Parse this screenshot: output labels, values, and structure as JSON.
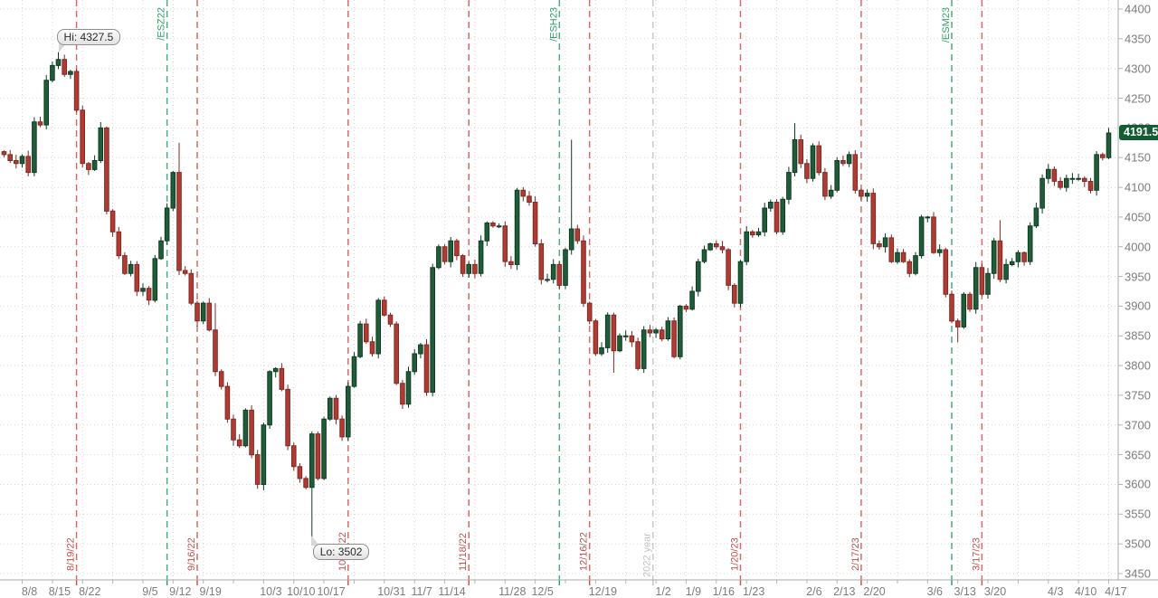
{
  "chart_data": {
    "type": "candlestick",
    "title": "",
    "instrument_rollover_labels": [
      "/ESZ22",
      "/ESH23",
      "/ESM23"
    ],
    "hi_annotation": {
      "label": "Hi: 4327.5",
      "date": "8/16",
      "price": 4327.5
    },
    "lo_annotation": {
      "label": "Lo: 3502",
      "date": "10/13",
      "price": 3502
    },
    "last_price": {
      "label": "4191.5",
      "value": 4191.5
    },
    "y_axis": {
      "min": 3450,
      "max": 4400,
      "step": 50,
      "labels": [
        4400,
        4350,
        4300,
        4250,
        4200,
        4150,
        4100,
        4050,
        4000,
        3950,
        3900,
        3850,
        3800,
        3750,
        3700,
        3650,
        3600,
        3550,
        3500,
        3450
      ]
    },
    "x_labels": [
      "8/8",
      "8/15",
      "8/22",
      "9/5",
      "9/12",
      "9/19",
      "10/3",
      "10/10",
      "10/17",
      "10/31",
      "11/7",
      "11/14",
      "11/28",
      "12/5",
      "12/19",
      "1/2",
      "1/9",
      "1/16",
      "1/23",
      "2/6",
      "2/13",
      "2/20",
      "3/6",
      "3/13",
      "3/20",
      "4/3",
      "4/10",
      "4/17"
    ],
    "events": [
      {
        "date": "8/19",
        "label": "8/19/22",
        "kind": "roll-expiry",
        "color": "red",
        "pos": "bottom",
        "offset": 0
      },
      {
        "date": "9/9",
        "label": "/ESZ22",
        "kind": "contract",
        "color": "green",
        "pos": "top",
        "offset": 0
      },
      {
        "date": "9/16",
        "label": "9/16/22",
        "kind": "roll-expiry",
        "color": "red",
        "pos": "bottom",
        "offset": 0
      },
      {
        "date": "10/21",
        "label": "10/21/22",
        "kind": "roll-expiry",
        "color": "red",
        "pos": "bottom",
        "offset": 0
      },
      {
        "date": "11/18",
        "label": "11/18/22",
        "kind": "roll-expiry",
        "color": "red",
        "pos": "bottom",
        "offset": 0
      },
      {
        "date": "12/9",
        "label": "/ESH23",
        "kind": "contract",
        "color": "green",
        "pos": "top",
        "offset": 0
      },
      {
        "date": "12/16",
        "label": "12/16/22",
        "kind": "roll-expiry",
        "color": "red",
        "pos": "bottom",
        "offset": 0
      },
      {
        "date": "12/30",
        "label": "2022 year",
        "kind": "year-boundary",
        "color": "gray",
        "pos": "bottom",
        "offset": 0.5
      },
      {
        "date": "1/20",
        "label": "1/20/23",
        "kind": "roll-expiry",
        "color": "red",
        "pos": "bottom",
        "offset": 0
      },
      {
        "date": "2/17",
        "label": "2/17/23",
        "kind": "roll-expiry",
        "color": "red",
        "pos": "bottom",
        "offset": 0
      },
      {
        "date": "3/10",
        "label": "/ESM23",
        "kind": "contract",
        "color": "green",
        "pos": "top",
        "offset": 0
      },
      {
        "date": "3/17",
        "label": "3/17/23",
        "kind": "roll-expiry",
        "color": "red",
        "pos": "bottom",
        "offset": 0
      }
    ],
    "first_open": 4160,
    "candles": [
      [
        "8/3",
        4155
      ],
      [
        "8/4",
        4145
      ],
      [
        "8/5",
        4140
      ],
      [
        "8/8",
        4152
      ],
      [
        "8/9",
        4125
      ],
      [
        "8/10",
        4210
      ],
      [
        "8/11",
        4205
      ],
      [
        "8/12",
        4280
      ],
      [
        "8/15",
        4305
      ],
      [
        "8/16",
        4315
      ],
      [
        "8/17",
        4290
      ],
      [
        "8/18",
        4295
      ],
      [
        "8/19",
        4230
      ],
      [
        "8/22",
        4140
      ],
      [
        "8/23",
        4130
      ],
      [
        "8/24",
        4145
      ],
      [
        "8/25",
        4200
      ],
      [
        "8/26",
        4060
      ],
      [
        "8/29",
        4025
      ],
      [
        "8/30",
        3985
      ],
      [
        "8/31",
        3955
      ],
      [
        "9/1",
        3970
      ],
      [
        "9/2",
        3925
      ],
      [
        "9/5",
        3930
      ],
      [
        "9/6",
        3910
      ],
      [
        "9/7",
        3980
      ],
      [
        "9/8",
        4010
      ],
      [
        "9/9",
        4065
      ],
      [
        "9/12",
        4125
      ],
      [
        "9/13",
        3960
      ],
      [
        "9/14",
        3955
      ],
      [
        "9/15",
        3905
      ],
      [
        "9/16",
        3875
      ],
      [
        "9/19",
        3905
      ],
      [
        "9/20",
        3860
      ],
      [
        "9/21",
        3790
      ],
      [
        "9/22",
        3765
      ],
      [
        "9/23",
        3710
      ],
      [
        "9/26",
        3675
      ],
      [
        "9/27",
        3665
      ],
      [
        "9/28",
        3725
      ],
      [
        "9/29",
        3650
      ],
      [
        "9/30",
        3600
      ],
      [
        "10/3",
        3700
      ],
      [
        "10/4",
        3790
      ],
      [
        "10/5",
        3795
      ],
      [
        "10/6",
        3760
      ],
      [
        "10/7",
        3665
      ],
      [
        "10/10",
        3630
      ],
      [
        "10/11",
        3610
      ],
      [
        "10/12",
        3595
      ],
      [
        "10/13",
        3685
      ],
      [
        "10/14",
        3610
      ],
      [
        "10/17",
        3710
      ],
      [
        "10/18",
        3745
      ],
      [
        "10/19",
        3710
      ],
      [
        "10/20",
        3680
      ],
      [
        "10/21",
        3765
      ],
      [
        "10/24",
        3815
      ],
      [
        "10/25",
        3870
      ],
      [
        "10/26",
        3840
      ],
      [
        "10/27",
        3820
      ],
      [
        "10/28",
        3910
      ],
      [
        "10/31",
        3885
      ],
      [
        "11/1",
        3870
      ],
      [
        "11/2",
        3770
      ],
      [
        "11/3",
        3735
      ],
      [
        "11/4",
        3790
      ],
      [
        "11/7",
        3820
      ],
      [
        "11/8",
        3835
      ],
      [
        "11/9",
        3755
      ],
      [
        "11/10",
        3965
      ],
      [
        "11/11",
        4000
      ],
      [
        "11/14",
        3975
      ],
      [
        "11/15",
        4010
      ],
      [
        "11/16",
        3985
      ],
      [
        "11/17",
        3955
      ],
      [
        "11/18",
        3970
      ],
      [
        "11/21",
        3955
      ],
      [
        "11/22",
        4010
      ],
      [
        "11/23",
        4040
      ],
      [
        "11/24",
        4035
      ],
      [
        "11/25",
        4035
      ],
      [
        "11/28",
        3975
      ],
      [
        "11/29",
        3970
      ],
      [
        "11/30",
        4095
      ],
      [
        "12/1",
        4085
      ],
      [
        "12/2",
        4075
      ],
      [
        "12/5",
        4005
      ],
      [
        "12/6",
        3945
      ],
      [
        "12/7",
        3945
      ],
      [
        "12/8",
        3970
      ],
      [
        "12/9",
        3935
      ],
      [
        "12/12",
        3995
      ],
      [
        "12/13",
        4030
      ],
      [
        "12/14",
        4010
      ],
      [
        "12/15",
        3905
      ],
      [
        "12/16",
        3875
      ],
      [
        "12/19",
        3820
      ],
      [
        "12/20",
        3830
      ],
      [
        "12/21",
        3885
      ],
      [
        "12/22",
        3825
      ],
      [
        "12/23",
        3850
      ],
      [
        "12/26",
        3850
      ],
      [
        "12/27",
        3840
      ],
      [
        "12/28",
        3795
      ],
      [
        "12/29",
        3860
      ],
      [
        "12/30",
        3855
      ],
      [
        "1/2",
        3860
      ],
      [
        "1/3",
        3845
      ],
      [
        "1/4",
        3875
      ],
      [
        "1/5",
        3815
      ],
      [
        "1/6",
        3900
      ],
      [
        "1/9",
        3895
      ],
      [
        "1/10",
        3925
      ],
      [
        "1/11",
        3975
      ],
      [
        "1/12",
        3995
      ],
      [
        "1/13",
        4005
      ],
      [
        "1/16",
        4000
      ],
      [
        "1/17",
        3995
      ],
      [
        "1/18",
        3935
      ],
      [
        "1/19",
        3905
      ],
      [
        "1/20",
        3975
      ],
      [
        "1/23",
        4025
      ],
      [
        "1/24",
        4020
      ],
      [
        "1/25",
        4025
      ],
      [
        "1/26",
        4065
      ],
      [
        "1/27",
        4075
      ],
      [
        "1/30",
        4025
      ],
      [
        "1/31",
        4080
      ],
      [
        "2/1",
        4125
      ],
      [
        "2/2",
        4180
      ],
      [
        "2/3",
        4140
      ],
      [
        "2/6",
        4115
      ],
      [
        "2/7",
        4170
      ],
      [
        "2/8",
        4125
      ],
      [
        "2/9",
        4085
      ],
      [
        "2/10",
        4095
      ],
      [
        "2/13",
        4145
      ],
      [
        "2/14",
        4140
      ],
      [
        "2/15",
        4155
      ],
      [
        "2/16",
        4095
      ],
      [
        "2/17",
        4085
      ],
      [
        "2/20",
        4090
      ],
      [
        "2/21",
        4005
      ],
      [
        "2/22",
        4000
      ],
      [
        "2/23",
        4015
      ],
      [
        "2/24",
        3975
      ],
      [
        "2/27",
        3990
      ],
      [
        "2/28",
        3975
      ],
      [
        "3/1",
        3955
      ],
      [
        "3/2",
        3985
      ],
      [
        "3/3",
        4050
      ],
      [
        "3/6",
        4050
      ],
      [
        "3/7",
        3990
      ],
      [
        "3/8",
        3995
      ],
      [
        "3/9",
        3920
      ],
      [
        "3/10",
        3875
      ],
      [
        "3/13",
        3865
      ],
      [
        "3/14",
        3920
      ],
      [
        "3/15",
        3895
      ],
      [
        "3/16",
        3965
      ],
      [
        "3/17",
        3920
      ],
      [
        "3/20",
        3955
      ],
      [
        "3/21",
        4010
      ],
      [
        "3/22",
        3945
      ],
      [
        "3/23",
        3970
      ],
      [
        "3/24",
        3975
      ],
      [
        "3/27",
        3990
      ],
      [
        "3/28",
        3975
      ],
      [
        "3/29",
        4035
      ],
      [
        "3/30",
        4065
      ],
      [
        "3/31",
        4115
      ],
      [
        "4/3",
        4130
      ],
      [
        "4/4",
        4110
      ],
      [
        "4/5",
        4100
      ],
      [
        "4/6",
        4115
      ],
      [
        "4/7",
        4115
      ],
      [
        "4/10",
        4115
      ],
      [
        "4/11",
        4110
      ],
      [
        "4/12",
        4095
      ],
      [
        "4/13",
        4155
      ],
      [
        "4/14",
        4150
      ],
      [
        "4/17",
        4191.5
      ]
    ],
    "overrides": {
      "8/16": {
        "high": 4327.5
      },
      "9/13": {
        "high": 4175
      },
      "9/21": {
        "high": 3905
      },
      "10/13": {
        "low": 3502
      },
      "12/13": {
        "high": 4180
      },
      "12/22": {
        "low": 3788
      },
      "2/2": {
        "high": 4208
      },
      "3/13": {
        "low": 3839
      },
      "3/22": {
        "high": 4045
      }
    },
    "colors": {
      "background": "#ffffff",
      "grid": "#d6d6d6",
      "axis_line": "#ababab",
      "axis_text": "#7d7d7d",
      "candle_up": "#1f5d39",
      "candle_up_stroke": "#123a23",
      "candle_down": "#b03b33",
      "candle_down_stroke": "#7f2a24",
      "event_red": "#cf5350",
      "event_red_text": "#c0504d",
      "event_green": "#2fa066",
      "event_gray": "#c2c2c2",
      "badge_bg": "#145c32",
      "badge_text": "#ffffff"
    }
  }
}
